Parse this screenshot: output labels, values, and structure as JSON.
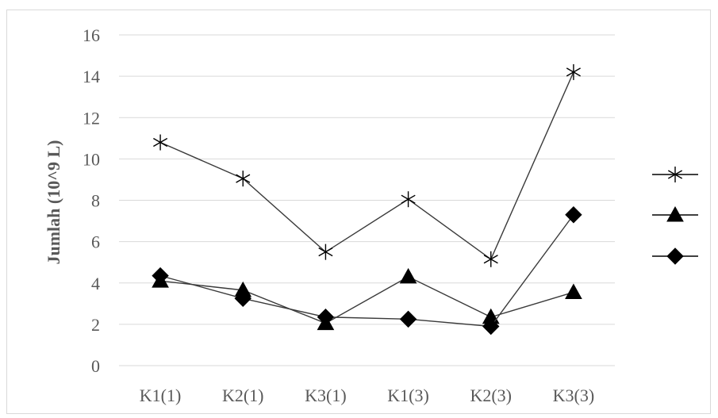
{
  "chart_data": {
    "type": "line",
    "categories": [
      "K1(1)",
      "K2(1)",
      "K3(1)",
      "K1(3)",
      "K2(3)",
      "K3(3)"
    ],
    "ylabel": "Jumlah (10^9 L)",
    "ylim": [
      0,
      16
    ],
    "yticks": [
      "0",
      "2",
      "4",
      "6",
      "8",
      "10",
      "12",
      "14",
      "16"
    ],
    "grid": true,
    "legend_position": "right",
    "series": [
      {
        "marker": "star",
        "values": [
          10.8,
          9.05,
          5.5,
          8.05,
          5.15,
          14.2
        ]
      },
      {
        "marker": "triangle",
        "values": [
          4.1,
          3.65,
          2.05,
          4.3,
          2.35,
          3.55
        ]
      },
      {
        "marker": "diamond",
        "values": [
          4.35,
          3.25,
          2.35,
          2.25,
          1.9,
          7.3
        ]
      }
    ]
  }
}
